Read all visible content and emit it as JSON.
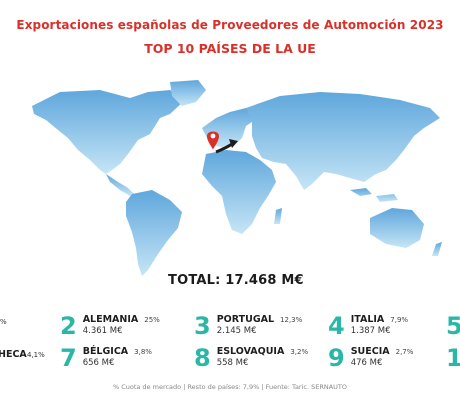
{
  "header": {
    "title": "Exportaciones españolas de Proveedores de Automoción 2023",
    "subtitle": "TOP 10 PAÍSES DE LA UE"
  },
  "map": {
    "marker": "location-pin-icon",
    "arrow": "export-arrow-icon"
  },
  "total": "TOTAL: 17.468 M€",
  "edge_fragments": {
    "left_top_percent": "%",
    "left_bottom_name": "HECA",
    "left_bottom_share": "4,1%",
    "right_top_rank": "5",
    "right_bottom_rank": "1"
  },
  "countries": [
    {
      "rank": "2",
      "name": "ALEMANIA",
      "share": "25%",
      "value": "4.361 M€"
    },
    {
      "rank": "3",
      "name": "PORTUGAL",
      "share": "12,3%",
      "value": "2.145 M€"
    },
    {
      "rank": "4",
      "name": "ITALIA",
      "share": "7,9%",
      "value": "1.387 M€"
    },
    {
      "rank": "7",
      "name": "BÉLGICA",
      "share": "3,8%",
      "value": "656 M€"
    },
    {
      "rank": "8",
      "name": "ESLOVAQUIA",
      "share": "3,2%",
      "value": "558 M€"
    },
    {
      "rank": "9",
      "name": "SUECIA",
      "share": "2,7%",
      "value": "476 M€"
    }
  ],
  "footnote": "% Cuota de mercado | Resto de países: 7,9% | Fuente: Taric. SERNAUTO",
  "colors": {
    "title": "#d9302a",
    "rank_number": "#2bb7a8",
    "map_top": "#5fa7dc",
    "map_bottom": "#bfe1f5",
    "marker": "#d9302a"
  }
}
